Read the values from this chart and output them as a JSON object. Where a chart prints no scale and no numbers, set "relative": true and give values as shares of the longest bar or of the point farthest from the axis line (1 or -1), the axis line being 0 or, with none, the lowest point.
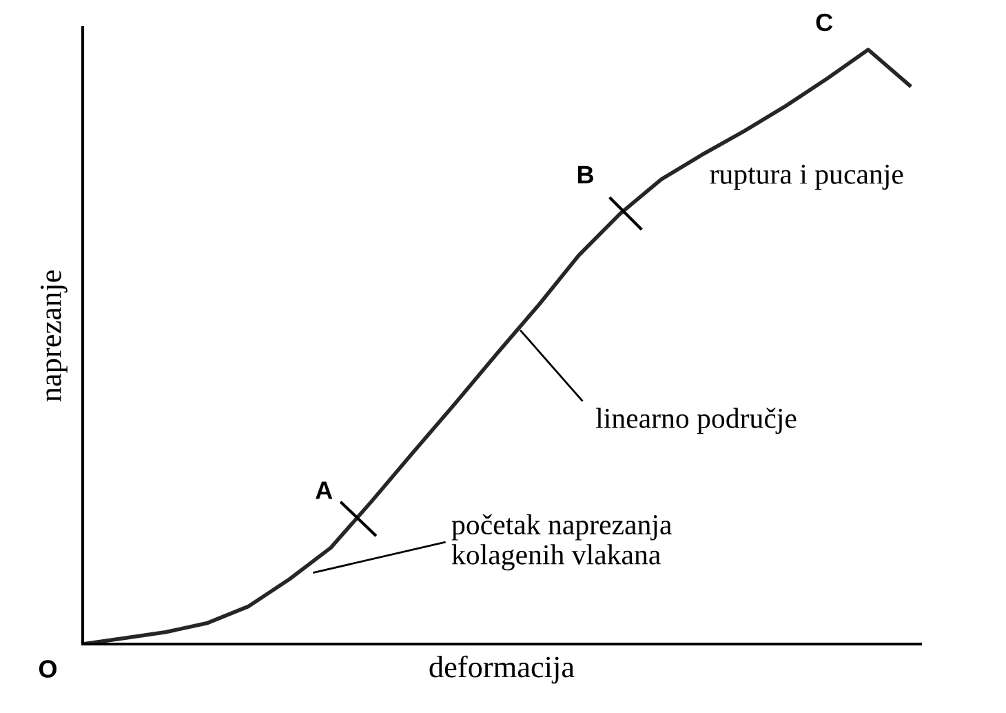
{
  "chart_data": {
    "type": "line",
    "relative": true,
    "xlabel": "deformacija",
    "ylabel": "naprezanje",
    "categories": [
      null,
      null,
      null,
      null,
      null,
      null,
      null,
      null,
      null,
      null,
      null,
      null,
      null,
      null,
      null,
      null,
      null,
      null,
      null,
      null,
      null
    ],
    "series": [
      {
        "color": "#262626",
        "values": [
          0,
          0.01,
          0.02,
          0.035,
          0.063,
          0.109,
          0.162,
          0.241,
          0.323,
          0.404,
          0.487,
          0.568,
          0.654,
          0.724,
          0.782,
          0.824,
          0.863,
          0.905,
          0.951,
          1,
          0.94
        ]
      }
    ],
    "annotations": [
      "O",
      "A",
      "B",
      "C",
      "ruptura i pucanje",
      "linearno područje",
      "početak naprezanja\nkolagenih vlakana"
    ],
    "marker": "none",
    "line_style": "solid",
    "legend": false,
    "tick_labels": false
  }
}
